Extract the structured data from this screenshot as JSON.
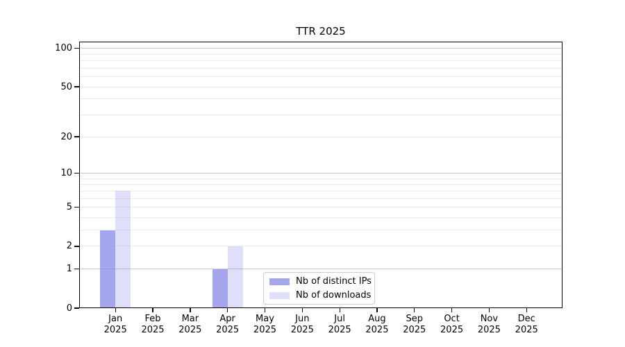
{
  "chart_data": {
    "type": "bar",
    "title": "TTR 2025",
    "categories": [
      "Jan 2025",
      "Feb 2025",
      "Mar 2025",
      "Apr 2025",
      "May 2025",
      "Jun 2025",
      "Jul 2025",
      "Aug 2025",
      "Sep 2025",
      "Oct 2025",
      "Nov 2025",
      "Dec 2025"
    ],
    "x_months": [
      "Jan",
      "Feb",
      "Mar",
      "Apr",
      "May",
      "Jun",
      "Jul",
      "Aug",
      "Sep",
      "Oct",
      "Nov",
      "Dec"
    ],
    "x_year": "2025",
    "series": [
      {
        "name": "Nb of distinct IPs",
        "values": [
          3,
          0,
          0,
          1,
          0,
          0,
          0,
          0,
          0,
          0,
          0,
          0
        ],
        "fill": "rgba(128,128,232,0.7)",
        "legend_color": "#a6a6ee"
      },
      {
        "name": "Nb of downloads",
        "values": [
          7,
          0,
          0,
          2,
          0,
          0,
          0,
          0,
          0,
          0,
          0,
          0
        ],
        "fill": "rgba(128,128,232,0.25)",
        "legend_color": "#dfdff9"
      }
    ],
    "yscale": "log1p",
    "ylim": [
      0,
      113
    ],
    "yticks": [
      0,
      1,
      2,
      5,
      10,
      20,
      50,
      100
    ],
    "grid": {
      "major_values": [
        1,
        10,
        100
      ],
      "minor_values": [
        2,
        3,
        4,
        5,
        6,
        7,
        8,
        9,
        20,
        30,
        40,
        50,
        60,
        70,
        80,
        90
      ],
      "major_color": "#c9c9c9",
      "minor_color": "#ededed"
    },
    "legend": {
      "position": "lower center",
      "items": [
        "Nb of distinct IPs",
        "Nb of downloads"
      ]
    }
  }
}
